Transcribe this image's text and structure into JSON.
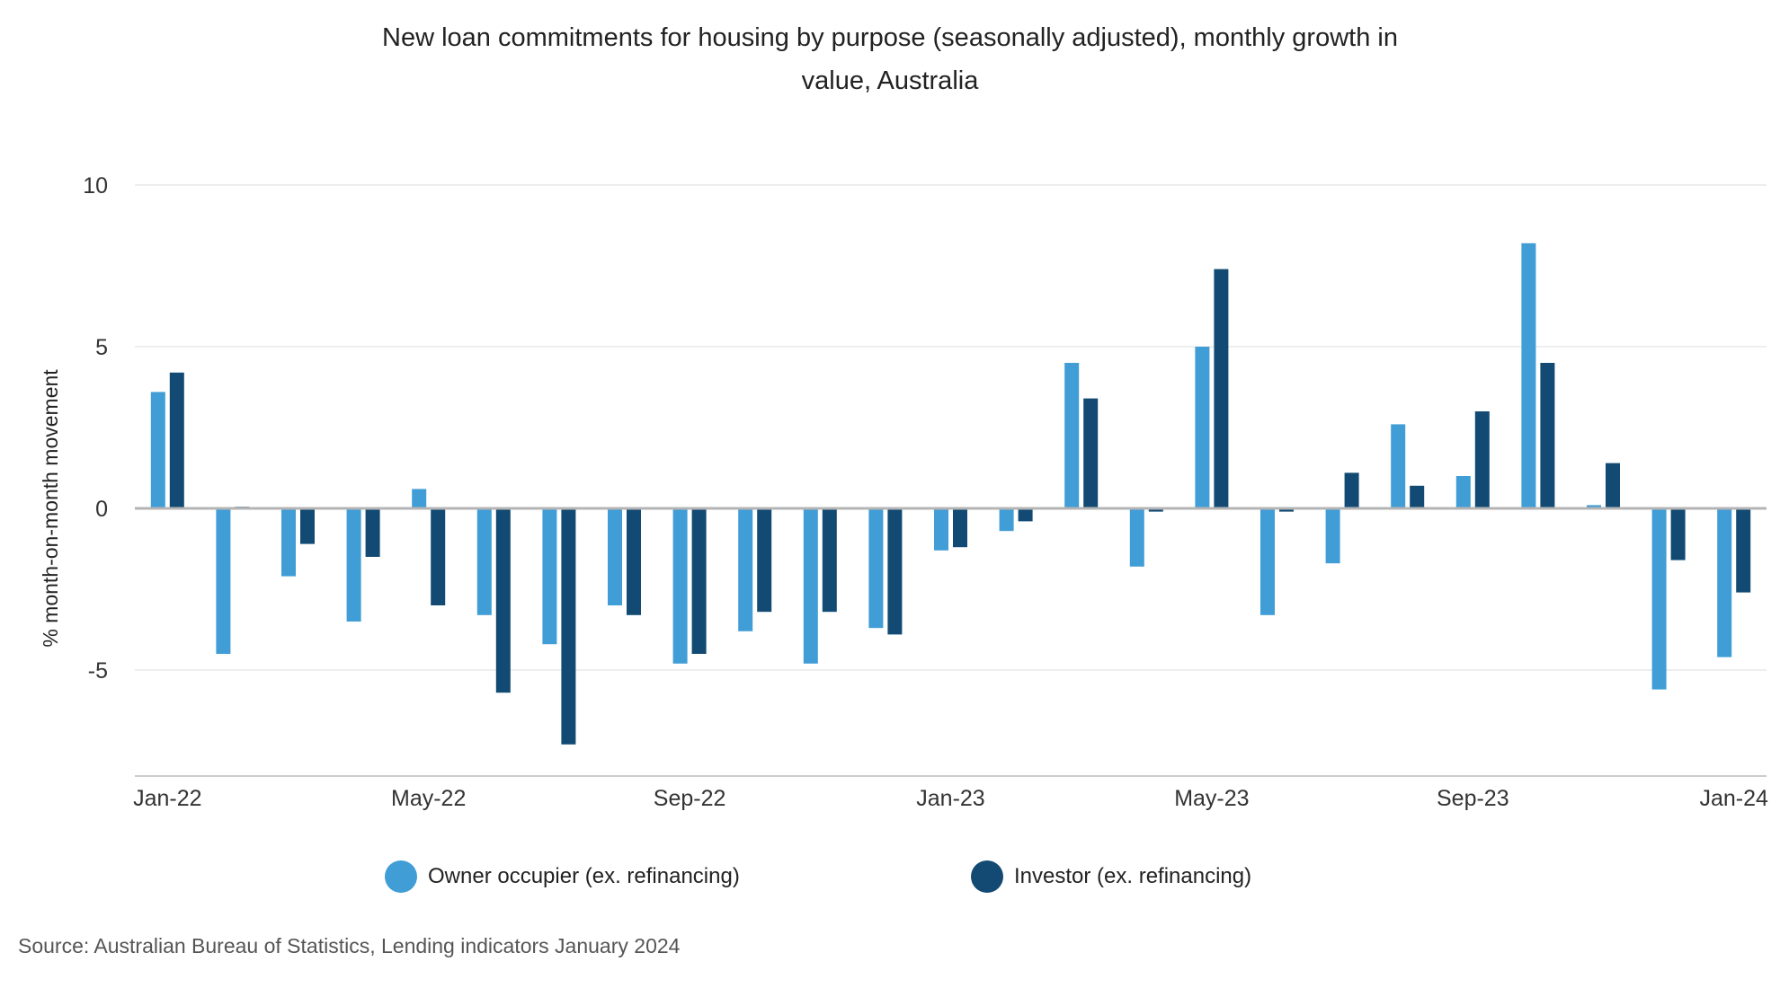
{
  "chart_data": {
    "type": "bar",
    "title_lines": [
      "New loan commitments for housing by purpose (seasonally adjusted), monthly growth in",
      "value, Australia"
    ],
    "ylabel": "% month-on-month movement",
    "xlabel": "",
    "ylim": [
      -8,
      10
    ],
    "yticks": [
      10,
      5,
      0,
      -5
    ],
    "grid": true,
    "legend_position": "bottom",
    "categories": [
      "Jan-22",
      "Feb-22",
      "Mar-22",
      "Apr-22",
      "May-22",
      "Jun-22",
      "Jul-22",
      "Aug-22",
      "Sep-22",
      "Oct-22",
      "Nov-22",
      "Dec-22",
      "Jan-23",
      "Feb-23",
      "Mar-23",
      "Apr-23",
      "May-23",
      "Jun-23",
      "Jul-23",
      "Aug-23",
      "Sep-23",
      "Oct-23",
      "Nov-23",
      "Dec-23",
      "Jan-24"
    ],
    "xtick_labels": [
      "Jan-22",
      "May-22",
      "Sep-22",
      "Jan-23",
      "May-23",
      "Sep-23",
      "Jan-24"
    ],
    "series": [
      {
        "name": "Owner occupier (ex. refinancing)",
        "color": "#409dd6",
        "values": [
          3.6,
          -4.5,
          -2.1,
          -3.5,
          0.6,
          -3.3,
          -4.2,
          -3.0,
          -4.8,
          -3.8,
          -4.8,
          -3.7,
          -1.3,
          -0.7,
          4.5,
          -1.8,
          5.0,
          -3.3,
          -1.7,
          2.6,
          1.0,
          8.2,
          0.1,
          -5.6,
          -4.6
        ]
      },
      {
        "name": "Investor (ex. refinancing)",
        "color": "#124a73",
        "values": [
          4.2,
          0.05,
          -1.1,
          -1.5,
          -3.0,
          -5.7,
          -7.3,
          -3.3,
          -4.5,
          -3.2,
          -3.2,
          -3.9,
          -1.2,
          -0.4,
          3.4,
          -0.1,
          7.4,
          -0.1,
          1.1,
          0.7,
          3.0,
          4.5,
          1.4,
          -1.6,
          -2.6
        ]
      }
    ],
    "zero_line_color": "#b4b4b4",
    "grid_color": "#dcdcdc"
  },
  "source": "Source: Australian Bureau of Statistics, Lending indicators January 2024"
}
